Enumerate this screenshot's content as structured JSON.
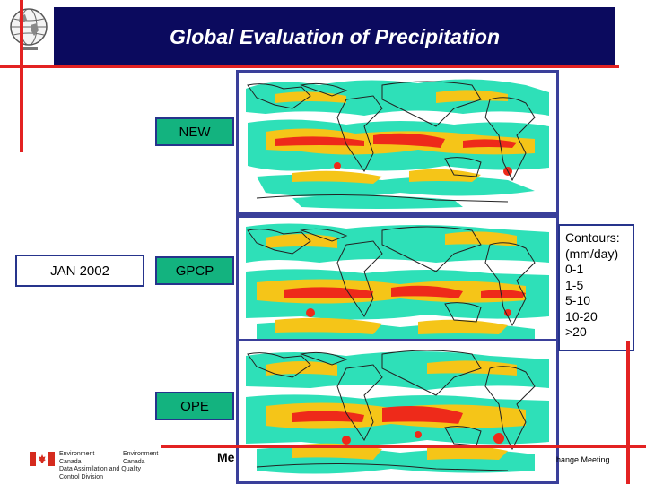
{
  "title": "Global Evaluation of Precipitation",
  "labels": {
    "new": "NEW",
    "gpcp": "GPCP",
    "ope": "OPE",
    "date": "JAN 2002"
  },
  "contours": {
    "heading1": "Contours:",
    "heading2": "(mm/day)",
    "ranges": [
      "0-1",
      "1-5",
      "5-10",
      "10-20",
      ">20"
    ]
  },
  "footer": {
    "org1_line1": "Environment",
    "org1_line2": "Canada",
    "org2_line1": "Environment",
    "org2_line2": "Canada",
    "division_line1": "Data Assimilation and Quality",
    "division_line2": "Control Division",
    "center_text": "Me",
    "right_text": "hange Meeting"
  },
  "colors": {
    "title_bg": "#0b0a5e",
    "accent_red": "#e32222",
    "label_green": "#13b37f",
    "border_blue": "#26348c",
    "precip_low": "#2ee0b8",
    "precip_mid": "#f5c518",
    "precip_high": "#ee2a1a"
  }
}
